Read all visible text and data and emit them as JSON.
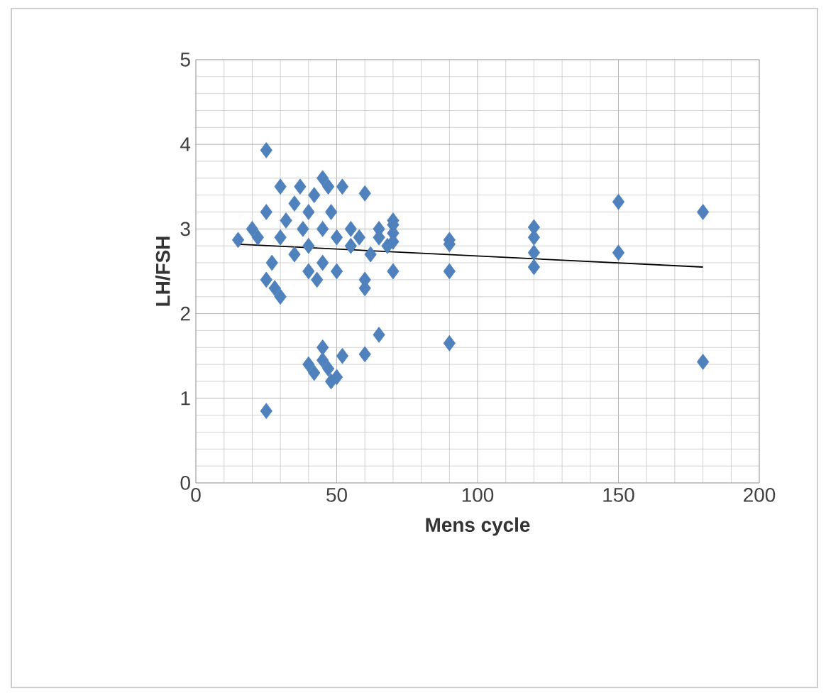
{
  "chart_data": {
    "type": "scatter",
    "xlabel": "Mens cycle",
    "ylabel": "LH/FSH",
    "xlim": [
      0,
      200
    ],
    "ylim": [
      0,
      5
    ],
    "xticks": [
      0,
      50,
      100,
      150,
      200
    ],
    "yticks": [
      0,
      1,
      2,
      3,
      4,
      5
    ],
    "grid": true,
    "series": [
      {
        "color": "#4f81bd",
        "marker": "diamond",
        "x": [
          25,
          25,
          15,
          180,
          180,
          150,
          150,
          120,
          120,
          120,
          120,
          90,
          90,
          90,
          90,
          70,
          70,
          70,
          70,
          65,
          60,
          60,
          60,
          60,
          40,
          42,
          45,
          45,
          48,
          50,
          52,
          47,
          20,
          22,
          25,
          25,
          27,
          28,
          30,
          30,
          30,
          32,
          35,
          35,
          37,
          38,
          40,
          40,
          40,
          42,
          43,
          45,
          45,
          45,
          47,
          48,
          50,
          50,
          52,
          55,
          55,
          58,
          62,
          65,
          65,
          68,
          70
        ],
        "values": [
          3.93,
          0.85,
          2.87,
          3.2,
          1.43,
          3.32,
          2.72,
          3.02,
          2.9,
          2.72,
          2.55,
          2.87,
          2.82,
          2.5,
          1.65,
          3.1,
          2.95,
          2.85,
          2.5,
          1.75,
          1.52,
          3.42,
          2.4,
          2.3,
          1.4,
          1.3,
          1.6,
          1.45,
          1.2,
          1.25,
          1.5,
          1.35,
          3.0,
          2.9,
          2.4,
          3.2,
          2.6,
          2.3,
          2.2,
          3.5,
          2.9,
          3.1,
          3.3,
          2.7,
          3.5,
          3.0,
          2.5,
          3.2,
          2.8,
          3.4,
          2.4,
          3.6,
          3.0,
          2.6,
          3.5,
          3.2,
          2.5,
          2.9,
          3.5,
          3.0,
          2.8,
          2.9,
          2.7,
          2.9,
          3.0,
          2.8,
          3.05
        ]
      },
      {
        "type": "line",
        "marker": "none",
        "color": "#000000",
        "x": [
          15,
          180
        ],
        "values": [
          2.82,
          2.55
        ]
      }
    ]
  }
}
